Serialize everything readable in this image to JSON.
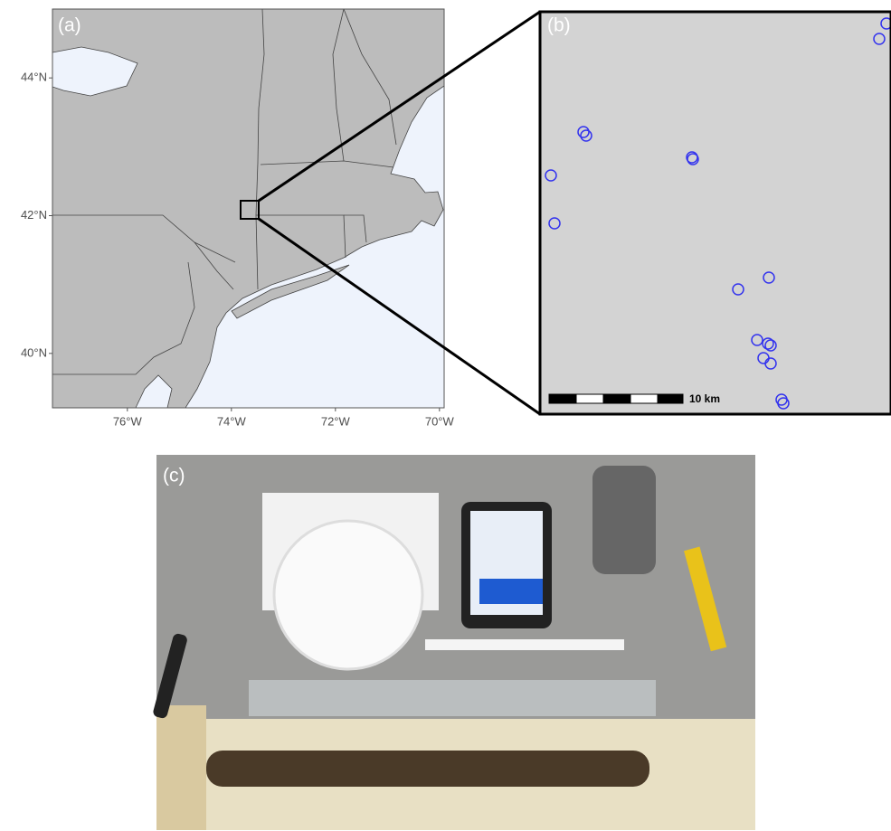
{
  "panel_a": {
    "label": "(a)",
    "xlim": [
      -77.44,
      -69.91
    ],
    "ylim": [
      39.21,
      45.0
    ],
    "xticks": [
      {
        "value": -76,
        "label": "76°W"
      },
      {
        "value": -74,
        "label": "74°W"
      },
      {
        "value": -72,
        "label": "72°W"
      },
      {
        "value": -70,
        "label": "70°W"
      }
    ],
    "yticks": [
      {
        "value": 40,
        "label": "40°N"
      },
      {
        "value": 42,
        "label": "42°N"
      },
      {
        "value": 44,
        "label": "44°N"
      }
    ]
  },
  "panel_b": {
    "label": "(b)",
    "scale_label": "10 km"
  },
  "panel_c": {
    "label": "(c)"
  }
}
